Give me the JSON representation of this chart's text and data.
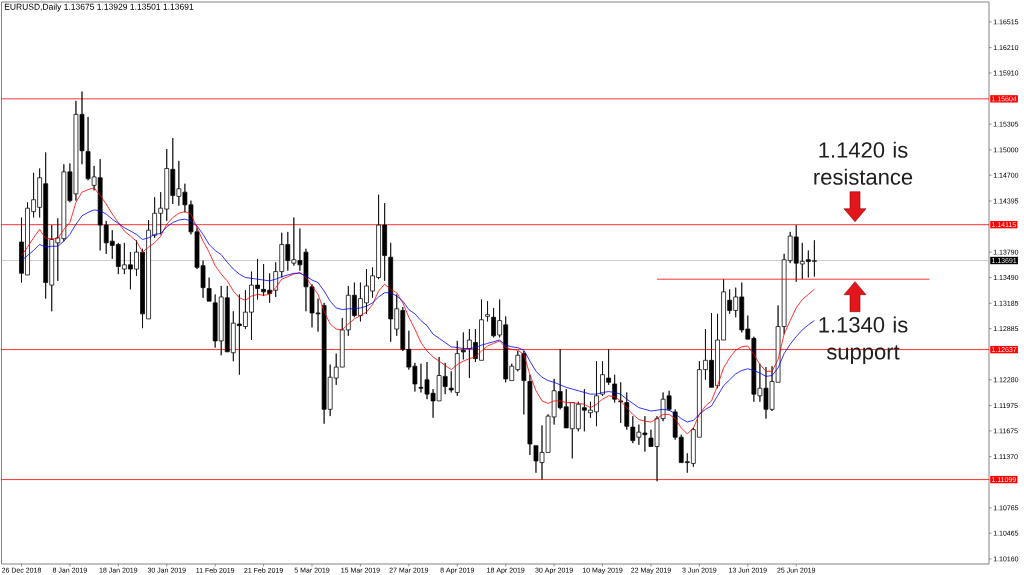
{
  "chart_data": {
    "type": "candlestick",
    "title": "EURUSD,Daily 1.13675 1.13929 1.13501 1.13691",
    "categories": [
      "26 Dec 2018",
      null,
      null,
      null,
      null,
      null,
      null,
      null,
      "8 Jan 2019",
      null,
      null,
      null,
      null,
      null,
      null,
      null,
      "18 Jan 2019",
      null,
      null,
      null,
      null,
      null,
      null,
      null,
      "30 Jan 2019",
      null,
      null,
      null,
      null,
      null,
      null,
      null,
      "11 Feb 2019",
      null,
      null,
      null,
      null,
      null,
      null,
      null,
      "21 Feb 2019",
      null,
      null,
      null,
      null,
      null,
      null,
      null,
      "5 Mar 2019",
      null,
      null,
      null,
      null,
      null,
      null,
      null,
      "15 Mar 2019",
      null,
      null,
      null,
      null,
      null,
      null,
      null,
      "27 Mar 2019",
      null,
      null,
      null,
      null,
      null,
      null,
      null,
      "8 Apr 2019",
      null,
      null,
      null,
      null,
      null,
      null,
      null,
      "18 Apr 2019",
      null,
      null,
      null,
      null,
      null,
      null,
      null,
      "30 Apr 2019",
      null,
      null,
      null,
      null,
      null,
      null,
      null,
      "10 May 2019",
      null,
      null,
      null,
      null,
      null,
      null,
      null,
      "22 May 2019",
      null,
      null,
      null,
      null,
      null,
      null,
      null,
      "3 Jun 2019",
      null,
      null,
      null,
      null,
      null,
      null,
      null,
      "13 Jun 2019",
      null,
      null,
      null,
      null,
      null,
      null,
      null,
      "25 Jun 2019",
      null,
      null,
      null,
      null,
      null,
      null,
      null,
      null,
      null,
      null,
      null,
      null,
      null,
      null,
      null,
      null,
      null,
      null,
      null,
      null,
      null,
      null,
      null,
      null,
      null,
      null,
      null,
      null,
      null,
      null,
      null
    ],
    "ohlc": [
      [
        1.1391,
        1.142,
        1.1343,
        1.1354
      ],
      [
        1.1352,
        1.1438,
        1.1351,
        1.1431
      ],
      [
        1.1427,
        1.1473,
        1.142,
        1.1441
      ],
      [
        1.1432,
        1.1478,
        1.142,
        1.1467
      ],
      [
        1.146,
        1.1497,
        1.1324,
        1.1343
      ],
      [
        1.134,
        1.1411,
        1.1309,
        1.1394
      ],
      [
        1.139,
        1.1419,
        1.1345,
        1.1396
      ],
      [
        1.1395,
        1.1483,
        1.1392,
        1.1474
      ],
      [
        1.1474,
        1.1484,
        1.1438,
        1.144
      ],
      [
        1.1448,
        1.1558,
        1.144,
        1.1542
      ],
      [
        1.1542,
        1.1569,
        1.1483,
        1.1499
      ],
      [
        1.1498,
        1.1539,
        1.1464,
        1.1466
      ],
      [
        1.1458,
        1.1481,
        1.1452,
        1.1468
      ],
      [
        1.1467,
        1.1489,
        1.1381,
        1.1411
      ],
      [
        1.1411,
        1.1416,
        1.1377,
        1.139
      ],
      [
        1.1392,
        1.1405,
        1.1371,
        1.1387
      ],
      [
        1.1388,
        1.139,
        1.1353,
        1.1362
      ],
      [
        1.1359,
        1.139,
        1.1353,
        1.1364
      ],
      [
        1.1364,
        1.1379,
        1.1335,
        1.1359
      ],
      [
        1.1359,
        1.1393,
        1.1351,
        1.1379
      ],
      [
        1.1379,
        1.1383,
        1.1289,
        1.1306
      ],
      [
        1.13,
        1.1417,
        1.1299,
        1.1405
      ],
      [
        1.1399,
        1.1444,
        1.1396,
        1.1425
      ],
      [
        1.1425,
        1.145,
        1.14,
        1.1431
      ],
      [
        1.143,
        1.1501,
        1.1416,
        1.1478
      ],
      [
        1.1477,
        1.1514,
        1.1436,
        1.1446
      ],
      [
        1.1445,
        1.1487,
        1.1434,
        1.1454
      ],
      [
        1.145,
        1.146,
        1.1426,
        1.1435
      ],
      [
        1.1435,
        1.144,
        1.14,
        1.1403
      ],
      [
        1.1403,
        1.1408,
        1.1359,
        1.1361
      ],
      [
        1.1363,
        1.1369,
        1.1325,
        1.1337
      ],
      [
        1.1336,
        1.1349,
        1.132,
        1.1321
      ],
      [
        1.1319,
        1.1329,
        1.1266,
        1.1274
      ],
      [
        1.1274,
        1.1339,
        1.1257,
        1.1326
      ],
      [
        1.1325,
        1.1339,
        1.126,
        1.1261
      ],
      [
        1.126,
        1.1309,
        1.125,
        1.1295
      ],
      [
        1.1294,
        1.1329,
        1.1234,
        1.1292
      ],
      [
        1.1291,
        1.1334,
        1.1288,
        1.1308
      ],
      [
        1.1308,
        1.1356,
        1.1275,
        1.134
      ],
      [
        1.134,
        1.1371,
        1.1323,
        1.1336
      ],
      [
        1.1335,
        1.1365,
        1.1327,
        1.1332
      ],
      [
        1.1334,
        1.1354,
        1.1319,
        1.133
      ],
      [
        1.1334,
        1.1367,
        1.1326,
        1.1356
      ],
      [
        1.1356,
        1.1402,
        1.1349,
        1.1388
      ],
      [
        1.1388,
        1.1403,
        1.1357,
        1.1369
      ],
      [
        1.1366,
        1.142,
        1.1363,
        1.137
      ],
      [
        1.1369,
        1.1407,
        1.1357,
        1.1364
      ],
      [
        1.1379,
        1.1383,
        1.1309,
        1.1338
      ],
      [
        1.1338,
        1.1341,
        1.129,
        1.1307
      ],
      [
        1.1307,
        1.1324,
        1.1285,
        1.1306
      ],
      [
        1.1316,
        1.1319,
        1.1176,
        1.1193
      ],
      [
        1.1193,
        1.1246,
        1.1185,
        1.1231
      ],
      [
        1.123,
        1.1259,
        1.1222,
        1.1243
      ],
      [
        1.1243,
        1.1301,
        1.1242,
        1.1287
      ],
      [
        1.1287,
        1.1339,
        1.128,
        1.1328
      ],
      [
        1.1328,
        1.1343,
        1.1302,
        1.1304
      ],
      [
        1.1304,
        1.1343,
        1.1297,
        1.1324
      ],
      [
        1.1319,
        1.1359,
        1.1306,
        1.1339
      ],
      [
        1.1333,
        1.1361,
        1.1325,
        1.1351
      ],
      [
        1.1349,
        1.1447,
        1.1347,
        1.1411
      ],
      [
        1.1411,
        1.1437,
        1.1345,
        1.1375
      ],
      [
        1.1373,
        1.139,
        1.1273,
        1.13
      ],
      [
        1.1288,
        1.1329,
        1.128,
        1.1312
      ],
      [
        1.131,
        1.1314,
        1.1262,
        1.1264
      ],
      [
        1.1264,
        1.1286,
        1.124,
        1.1243
      ],
      [
        1.1244,
        1.1248,
        1.1214,
        1.1223
      ],
      [
        1.1219,
        1.1247,
        1.1213,
        1.1218
      ],
      [
        1.1228,
        1.1249,
        1.1205,
        1.1211
      ],
      [
        1.1212,
        1.1217,
        1.1183,
        1.1203
      ],
      [
        1.1203,
        1.1255,
        1.1202,
        1.1233
      ],
      [
        1.1232,
        1.1248,
        1.1211,
        1.122
      ],
      [
        1.1218,
        1.1238,
        1.1213,
        1.1216
      ],
      [
        1.1213,
        1.1274,
        1.1209,
        1.1259
      ],
      [
        1.1263,
        1.1284,
        1.1252,
        1.1261
      ],
      [
        1.1265,
        1.1288,
        1.123,
        1.1275
      ],
      [
        1.1272,
        1.1288,
        1.1249,
        1.1253
      ],
      [
        1.1251,
        1.1323,
        1.125,
        1.1299
      ],
      [
        1.1303,
        1.1321,
        1.1297,
        1.1305
      ],
      [
        1.1302,
        1.1313,
        1.1278,
        1.128
      ],
      [
        1.1281,
        1.1323,
        1.1278,
        1.1298
      ],
      [
        1.1293,
        1.1303,
        1.1225,
        1.1229
      ],
      [
        1.1227,
        1.1247,
        1.1226,
        1.1244
      ],
      [
        1.124,
        1.1262,
        1.1238,
        1.1257
      ],
      [
        1.1259,
        1.1262,
        1.1187,
        1.1227
      ],
      [
        1.1226,
        1.1234,
        1.1139,
        1.1152
      ],
      [
        1.115,
        1.1151,
        1.1118,
        1.1132
      ],
      [
        1.113,
        1.1174,
        1.111,
        1.1142
      ],
      [
        1.1142,
        1.1187,
        1.1141,
        1.1185
      ],
      [
        1.1184,
        1.1229,
        1.1175,
        1.1215
      ],
      [
        1.1214,
        1.1264,
        1.1193,
        1.1195
      ],
      [
        1.1196,
        1.1217,
        1.117,
        1.1171
      ],
      [
        1.117,
        1.1202,
        1.1135,
        1.1201
      ],
      [
        1.117,
        1.1202,
        1.1167,
        1.1199
      ],
      [
        1.1195,
        1.1217,
        1.1167,
        1.1192
      ],
      [
        1.1189,
        1.1202,
        1.1183,
        1.1192
      ],
      [
        1.119,
        1.125,
        1.1173,
        1.1209
      ],
      [
        1.1211,
        1.125,
        1.1209,
        1.1234
      ],
      [
        1.123,
        1.1264,
        1.1222,
        1.1225
      ],
      [
        1.1223,
        1.1234,
        1.1201,
        1.1205
      ],
      [
        1.1203,
        1.1225,
        1.1177,
        1.1202
      ],
      [
        1.1201,
        1.1213,
        1.1169,
        1.1173
      ],
      [
        1.1172,
        1.1185,
        1.1153,
        1.1156
      ],
      [
        1.116,
        1.1175,
        1.1151,
        1.1166
      ],
      [
        1.1165,
        1.1185,
        1.1143,
        1.1163
      ],
      [
        1.1159,
        1.1169,
        1.1148,
        1.1149
      ],
      [
        1.1149,
        1.1185,
        1.1108,
        1.1182
      ],
      [
        1.1182,
        1.1213,
        1.1179,
        1.1205
      ],
      [
        1.1209,
        1.1215,
        1.1191,
        1.1193
      ],
      [
        1.119,
        1.1193,
        1.1157,
        1.116
      ],
      [
        1.116,
        1.1163,
        1.1129,
        1.113
      ],
      [
        1.1131,
        1.1141,
        1.1118,
        1.113
      ],
      [
        1.1129,
        1.1171,
        1.1125,
        1.1169
      ],
      [
        1.116,
        1.125,
        1.1159,
        1.124
      ],
      [
        1.124,
        1.1288,
        1.1228,
        1.1251
      ],
      [
        1.1251,
        1.1307,
        1.1218,
        1.1219
      ],
      [
        1.1221,
        1.1306,
        1.1218,
        1.1275
      ],
      [
        1.1275,
        1.1347,
        1.1274,
        1.1332
      ],
      [
        1.1322,
        1.1335,
        1.1306,
        1.131
      ],
      [
        1.131,
        1.1337,
        1.1302,
        1.1326
      ],
      [
        1.1326,
        1.1343,
        1.1284,
        1.1287
      ],
      [
        1.1288,
        1.1304,
        1.1275,
        1.1276
      ],
      [
        1.1277,
        1.1279,
        1.1202,
        1.1211
      ],
      [
        1.1209,
        1.1247,
        1.1202,
        1.1218
      ],
      [
        1.1218,
        1.1243,
        1.1182,
        1.1193
      ],
      [
        1.1193,
        1.1244,
        1.1191,
        1.1226
      ],
      [
        1.1225,
        1.1316,
        1.1224,
        1.1291
      ],
      [
        1.1291,
        1.1377,
        1.1282,
        1.137
      ],
      [
        1.1369,
        1.1403,
        1.1366,
        1.1398
      ],
      [
        1.1397,
        1.1411,
        1.1344,
        1.1366
      ],
      [
        1.1365,
        1.139,
        1.1347,
        1.1368
      ],
      [
        1.137,
        1.1381,
        1.1349,
        1.1368
      ],
      [
        1.1368,
        1.1393,
        1.135,
        1.1369
      ],
      null,
      null,
      null,
      null,
      null,
      null,
      null,
      null,
      null,
      null,
      null,
      null,
      null,
      null,
      null,
      null,
      null,
      null,
      null,
      null,
      null,
      null,
      null,
      null,
      null,
      null,
      null,
      null
    ],
    "series": [
      {
        "type": "line",
        "color": "#ff0000",
        "values": [
          1.1375,
          1.1385,
          1.1396,
          1.1406,
          1.1395,
          1.1395,
          1.1395,
          1.1406,
          1.1414,
          1.1438,
          1.145,
          1.1453,
          1.1455,
          1.1446,
          1.1436,
          1.1424,
          1.1414,
          1.1404,
          1.1398,
          1.1392,
          1.1379,
          1.1385,
          1.139,
          1.1398,
          1.1412,
          1.142,
          1.1425,
          1.1427,
          1.1424,
          1.1408,
          1.1392,
          1.1379,
          1.1363,
          1.1353,
          1.1345,
          1.1333,
          1.1325,
          1.1322,
          1.1327,
          1.1329,
          1.1328,
          1.1329,
          1.1337,
          1.1347,
          1.135,
          1.1353,
          1.1355,
          1.1349,
          1.1339,
          1.1329,
          1.1309,
          1.1294,
          1.1288,
          1.1287,
          1.1294,
          1.13,
          1.1304,
          1.1308,
          1.1317,
          1.1333,
          1.1341,
          1.1335,
          1.1331,
          1.1319,
          1.1302,
          1.1288,
          1.1272,
          1.1262,
          1.1255,
          1.125,
          1.1245,
          1.124,
          1.1246,
          1.125,
          1.1253,
          1.1255,
          1.1262,
          1.1268,
          1.1271,
          1.1274,
          1.1266,
          1.1264,
          1.1263,
          1.1258,
          1.1234,
          1.1215,
          1.1203,
          1.12,
          1.1203,
          1.1203,
          1.1201,
          1.1201,
          1.12,
          1.1199,
          1.1195,
          1.1199,
          1.1205,
          1.1209,
          1.1208,
          1.1203,
          1.1195,
          1.1187,
          1.1181,
          1.1179,
          1.1178,
          1.1182,
          1.1187,
          1.1187,
          1.1182,
          1.1171,
          1.1164,
          1.1171,
          1.1187,
          1.1197,
          1.1203,
          1.1221,
          1.1242,
          1.1254,
          1.1263,
          1.1267,
          1.1268,
          1.1258,
          1.1246,
          1.1238,
          1.1238,
          1.1252,
          1.1282,
          1.1298,
          1.1313,
          1.1323,
          1.1329,
          1.1335,
          null,
          null,
          null,
          null,
          null,
          null,
          null,
          null,
          null,
          null,
          null,
          null,
          null,
          null,
          null,
          null,
          null,
          null,
          null,
          null,
          null,
          null,
          null,
          null,
          null,
          null,
          null,
          null
        ]
      },
      {
        "type": "line",
        "color": "#0000ff",
        "values": [
          1.1369,
          1.1375,
          1.1381,
          1.1388,
          1.1385,
          1.1386,
          1.1386,
          1.1392,
          1.14,
          1.1412,
          1.1422,
          1.1426,
          1.1429,
          1.1428,
          1.1424,
          1.1418,
          1.1413,
          1.1408,
          1.1404,
          1.14,
          1.1394,
          1.1396,
          1.14,
          1.1401,
          1.1409,
          1.1414,
          1.1417,
          1.1418,
          1.1416,
          1.141,
          1.14,
          1.1388,
          1.1381,
          1.1376,
          1.1367,
          1.1359,
          1.1353,
          1.1349,
          1.1348,
          1.1347,
          1.1346,
          1.1345,
          1.1347,
          1.135,
          1.1352,
          1.1354,
          1.1354,
          1.1351,
          1.1346,
          1.1343,
          1.1333,
          1.1321,
          1.1313,
          1.1311,
          1.1312,
          1.1312,
          1.1313,
          1.1315,
          1.1319,
          1.1326,
          1.1331,
          1.1331,
          1.1327,
          1.1321,
          1.1311,
          1.1306,
          1.1298,
          1.1292,
          1.1282,
          1.1277,
          1.1272,
          1.1267,
          1.1266,
          1.1265,
          1.1265,
          1.1266,
          1.1269,
          1.1271,
          1.1273,
          1.1275,
          1.1269,
          1.1267,
          1.1266,
          1.1263,
          1.125,
          1.1238,
          1.1231,
          1.1227,
          1.1225,
          1.1222,
          1.1219,
          1.1217,
          1.1215,
          1.1213,
          1.1211,
          1.1211,
          1.1213,
          1.1214,
          1.1213,
          1.1211,
          1.1205,
          1.12,
          1.1195,
          1.1193,
          1.1191,
          1.1192,
          1.1193,
          1.1192,
          1.1188,
          1.1182,
          1.1178,
          1.118,
          1.1187,
          1.1193,
          1.1197,
          1.1209,
          1.1221,
          1.1228,
          1.1235,
          1.1239,
          1.1241,
          1.1239,
          1.1236,
          1.1232,
          1.1233,
          1.1242,
          1.1259,
          1.127,
          1.1279,
          1.1287,
          1.1293,
          1.1298,
          null,
          null,
          null,
          null,
          null,
          null,
          null,
          null,
          null,
          null,
          null,
          null,
          null,
          null,
          null,
          null,
          null,
          null,
          null,
          null,
          null,
          null,
          null,
          null,
          null,
          null,
          null,
          null
        ]
      },
      {
        "type": "line",
        "color": "#ff0000",
        "values": [
          null,
          null,
          null,
          null,
          null,
          null,
          null,
          null,
          null,
          null,
          null,
          null,
          null,
          null,
          null,
          null,
          null,
          null,
          null,
          null,
          null,
          null,
          null,
          null,
          null,
          null,
          null,
          null,
          null,
          null,
          null,
          null,
          null,
          null,
          null,
          null,
          null,
          null,
          null,
          null,
          null,
          null,
          null,
          null,
          null,
          null,
          null,
          null,
          null,
          null,
          null,
          null,
          null,
          null,
          null,
          null,
          null,
          null,
          null,
          null,
          null,
          null,
          null,
          null,
          null,
          null,
          null,
          null,
          null,
          null,
          null,
          null,
          null,
          null,
          null,
          null,
          null,
          null,
          null,
          null,
          null,
          null,
          null,
          null,
          null,
          null,
          null,
          null,
          null,
          null,
          null,
          null,
          null,
          null,
          null,
          null,
          null,
          null,
          null,
          null,
          null,
          null,
          null,
          null,
          null,
          1.1347,
          1.1347,
          1.1347,
          1.1347,
          1.1347,
          1.1347,
          1.1347,
          1.1347,
          1.1347,
          1.1347,
          1.1347,
          1.1347,
          1.1347,
          1.1347,
          1.1347,
          1.1347,
          1.1347,
          1.1347,
          1.1347,
          1.1347,
          1.1347,
          1.1347,
          1.1347,
          1.1347,
          1.1347,
          1.1347,
          1.1347,
          1.1347,
          1.1347,
          1.1347,
          1.1347,
          1.1347,
          1.1347,
          1.1347,
          1.1347,
          1.1347,
          1.1347,
          1.1347,
          1.1347,
          1.1347,
          1.1347,
          1.1347,
          1.1347,
          1.1347,
          1.1347,
          1.1347,
          null,
          null,
          null,
          null,
          null,
          null,
          null,
          null,
          null
        ]
      }
    ],
    "ylim": [
      1.101,
      1.1675
    ],
    "yticks": [
      {
        "value": 1.16515,
        "label": "1.16515"
      },
      {
        "value": 1.1621,
        "label": "1.16210"
      },
      {
        "value": 1.1591,
        "label": "1.15910"
      },
      {
        "value": 1.15305,
        "label": "1.15305"
      },
      {
        "value": 1.15,
        "label": "1.15000"
      },
      {
        "value": 1.147,
        "label": "1.14700"
      },
      {
        "value": 1.14395,
        "label": "1.14395"
      },
      {
        "value": 1.1379,
        "label": "1.13790"
      },
      {
        "value": 1.1349,
        "label": "1.13490"
      },
      {
        "value": 1.13185,
        "label": "1.13185"
      },
      {
        "value": 1.12885,
        "label": "1.12885"
      },
      {
        "value": 1.1228,
        "label": "1.12280"
      },
      {
        "value": 1.11975,
        "label": "1.11975"
      },
      {
        "value": 1.11675,
        "label": "1.11675"
      },
      {
        "value": 1.1137,
        "label": "1.11370"
      },
      {
        "value": 1.10765,
        "label": "1.10765"
      },
      {
        "value": 1.10465,
        "label": "1.10465"
      },
      {
        "value": 1.1016,
        "label": "1.10160"
      }
    ],
    "ref_lines": [
      {
        "axis": "y",
        "value": 1.15604,
        "label": "1.15604",
        "color": "#ff0000"
      },
      {
        "axis": "y",
        "value": 1.14115,
        "label": "1.14115",
        "color": "#ff0000"
      },
      {
        "axis": "y",
        "value": 1.13691,
        "label": "1.13691",
        "color": "#c0c0c0"
      },
      {
        "axis": "y",
        "value": 1.12637,
        "label": "1.12637",
        "color": "#ff0000"
      },
      {
        "axis": "y",
        "value": 1.11099,
        "label": "1.11099",
        "color": "#ff0000"
      }
    ],
    "annotations": [
      {
        "text": "1.1420 is resistance",
        "y": 1.1412
      },
      {
        "text": "1.1340 is support",
        "y": 1.1347
      }
    ]
  }
}
